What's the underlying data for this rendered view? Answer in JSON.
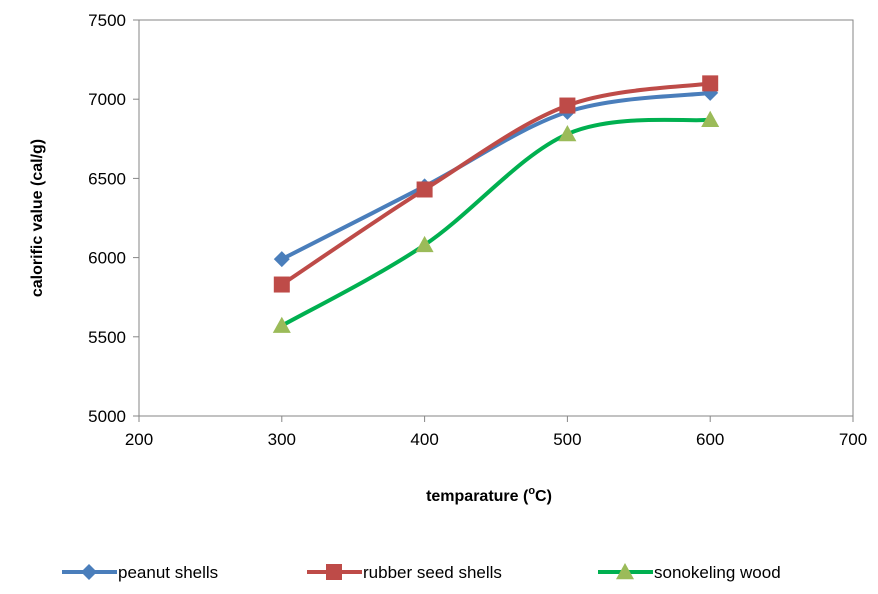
{
  "chart_data": {
    "type": "line",
    "title": "",
    "xlabel": "temparature (",
    "xlabel_sup": "o",
    "xlabel_end": "C)",
    "ylabel": "calorific value (cal/g)",
    "x": [
      300,
      400,
      500,
      600
    ],
    "xlim": [
      200,
      700
    ],
    "ylim": [
      5000,
      7500
    ],
    "x_ticks": [
      "200",
      "300",
      "400",
      "500",
      "600",
      "700"
    ],
    "y_ticks": [
      "5000",
      "5500",
      "6000",
      "6500",
      "7000",
      "7500"
    ],
    "x_tick_values": [
      200,
      300,
      400,
      500,
      600,
      700
    ],
    "y_tick_values": [
      5000,
      5500,
      6000,
      6500,
      7000,
      7500
    ],
    "grid": false,
    "smooth": true,
    "legend_position": "bottom",
    "series": [
      {
        "name": "peanut shells",
        "values": [
          5990,
          6450,
          6920,
          7040
        ],
        "color": "#4a7ebb",
        "marker": "diamond"
      },
      {
        "name": "rubber  seed shells",
        "values": [
          5830,
          6430,
          6960,
          7100
        ],
        "color": "#be4b48",
        "marker": "square"
      },
      {
        "name": "sonokeling wood",
        "values": [
          5570,
          6080,
          6780,
          6870
        ],
        "color": "#00b050",
        "marker": "triangle",
        "marker_color": "#9bbb59"
      }
    ]
  }
}
